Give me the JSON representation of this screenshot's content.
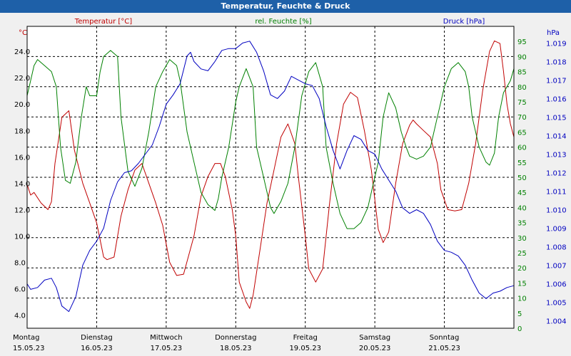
{
  "title": "Temperatur, Feuchte & Druck",
  "colors": {
    "temp": "#c00000",
    "hum": "#008000",
    "press": "#0000c0",
    "grid": "#000000",
    "titlebar": "#1e60a8"
  },
  "chart_data": {
    "type": "line",
    "title": "Temperatur, Feuchte & Druck",
    "x_range": [
      0,
      7
    ],
    "x_days": [
      {
        "day": "Montag",
        "date": "15.05.23"
      },
      {
        "day": "Dienstag",
        "date": "16.05.23"
      },
      {
        "day": "Mittwoch",
        "date": "17.05.23"
      },
      {
        "day": "Donnerstag",
        "date": "18.05.23"
      },
      {
        "day": "Freitag",
        "date": "19.05.23"
      },
      {
        "day": "Samstag",
        "date": "20.05.23"
      },
      {
        "day": "Sonntag",
        "date": "21.05.23"
      }
    ],
    "axes": {
      "temp": {
        "label": "Temperatur [°C]",
        "unit": "°C",
        "range": [
          3.0,
          25.9
        ],
        "ticks": [
          "4.0",
          "6.0",
          "8.0",
          "10.0",
          "12.0",
          "14.0",
          "16.0",
          "18.0",
          "20.0",
          "22.0",
          "24.0"
        ]
      },
      "hum": {
        "label": "rel. Feuchte [%]",
        "unit": "%",
        "range": [
          0,
          100
        ],
        "ticks": [
          "0",
          "5",
          "10",
          "15",
          "20",
          "25",
          "30",
          "35",
          "40",
          "45",
          "50",
          "55",
          "60",
          "65",
          "70",
          "75",
          "80",
          "85",
          "90",
          "95"
        ]
      },
      "press": {
        "label": "Druck [hPa]",
        "unit": "hPa",
        "range": [
          1.0036,
          1.0199
        ],
        "ticks": [
          "1.004",
          "1.005",
          "1.006",
          "1.007",
          "1.008",
          "1.009",
          "1.010",
          "1.011",
          "1.012",
          "1.013",
          "1.014",
          "1.015",
          "1.016",
          "1.017",
          "1.018",
          "1.019"
        ]
      }
    },
    "series": [
      {
        "name": "Temperatur [°C]",
        "axis": "temp",
        "points": [
          [
            0,
            13.9
          ],
          [
            0.05,
            13.1
          ],
          [
            0.1,
            13.3
          ],
          [
            0.2,
            12.5
          ],
          [
            0.3,
            12.0
          ],
          [
            0.35,
            12.6
          ],
          [
            0.4,
            15.5
          ],
          [
            0.5,
            19.0
          ],
          [
            0.6,
            19.5
          ],
          [
            0.68,
            16.5
          ],
          [
            0.8,
            14.0
          ],
          [
            0.9,
            12.5
          ],
          [
            1.0,
            11.0
          ],
          [
            1.1,
            8.4
          ],
          [
            1.15,
            8.2
          ],
          [
            1.25,
            8.4
          ],
          [
            1.35,
            11.5
          ],
          [
            1.45,
            13.5
          ],
          [
            1.55,
            15.0
          ],
          [
            1.65,
            15.5
          ],
          [
            1.75,
            14.0
          ],
          [
            1.85,
            12.5
          ],
          [
            1.95,
            10.8
          ],
          [
            2.05,
            8.0
          ],
          [
            2.15,
            7.0
          ],
          [
            2.25,
            7.1
          ],
          [
            2.4,
            10.0
          ],
          [
            2.5,
            13.0
          ],
          [
            2.6,
            14.5
          ],
          [
            2.7,
            15.5
          ],
          [
            2.78,
            15.5
          ],
          [
            2.85,
            14.5
          ],
          [
            2.95,
            12.0
          ],
          [
            3.0,
            10.0
          ],
          [
            3.05,
            6.5
          ],
          [
            3.15,
            5.0
          ],
          [
            3.2,
            4.5
          ],
          [
            3.25,
            5.5
          ],
          [
            3.35,
            9.0
          ],
          [
            3.45,
            12.5
          ],
          [
            3.55,
            15.0
          ],
          [
            3.65,
            17.5
          ],
          [
            3.75,
            18.5
          ],
          [
            3.85,
            17.0
          ],
          [
            3.9,
            14.5
          ],
          [
            4.0,
            10.0
          ],
          [
            4.05,
            7.5
          ],
          [
            4.15,
            6.5
          ],
          [
            4.25,
            7.5
          ],
          [
            4.35,
            12.5
          ],
          [
            4.45,
            17.0
          ],
          [
            4.55,
            20.0
          ],
          [
            4.65,
            20.9
          ],
          [
            4.75,
            20.5
          ],
          [
            4.85,
            18.0
          ],
          [
            4.95,
            15.0
          ],
          [
            5.05,
            10.5
          ],
          [
            5.12,
            9.5
          ],
          [
            5.2,
            10.3
          ],
          [
            5.3,
            14.0
          ],
          [
            5.4,
            17.0
          ],
          [
            5.5,
            18.4
          ],
          [
            5.55,
            18.8
          ],
          [
            5.6,
            18.5
          ],
          [
            5.7,
            18.0
          ],
          [
            5.8,
            17.5
          ],
          [
            5.9,
            15.5
          ],
          [
            5.95,
            13.5
          ],
          [
            6.05,
            12.0
          ],
          [
            6.15,
            11.9
          ],
          [
            6.25,
            12.0
          ],
          [
            6.35,
            14.0
          ],
          [
            6.45,
            17.0
          ],
          [
            6.55,
            21.0
          ],
          [
            6.65,
            24.0
          ],
          [
            6.72,
            24.8
          ],
          [
            6.8,
            24.6
          ],
          [
            6.85,
            22.5
          ],
          [
            6.9,
            20.0
          ],
          [
            6.95,
            18.5
          ],
          [
            7.0,
            17.5
          ]
        ]
      },
      {
        "name": "rel. Feuchte [%]",
        "axis": "hum",
        "points": [
          [
            0,
            77
          ],
          [
            0.05,
            82
          ],
          [
            0.1,
            87
          ],
          [
            0.15,
            89
          ],
          [
            0.25,
            87
          ],
          [
            0.35,
            85
          ],
          [
            0.42,
            80
          ],
          [
            0.48,
            60
          ],
          [
            0.55,
            49
          ],
          [
            0.62,
            48
          ],
          [
            0.7,
            55
          ],
          [
            0.78,
            70
          ],
          [
            0.85,
            80
          ],
          [
            0.9,
            77
          ],
          [
            1.0,
            77
          ],
          [
            1.05,
            85
          ],
          [
            1.1,
            90
          ],
          [
            1.2,
            92
          ],
          [
            1.3,
            90
          ],
          [
            1.35,
            70
          ],
          [
            1.45,
            52
          ],
          [
            1.55,
            47
          ],
          [
            1.65,
            53
          ],
          [
            1.75,
            65
          ],
          [
            1.85,
            80
          ],
          [
            1.95,
            85
          ],
          [
            2.05,
            89
          ],
          [
            2.15,
            87
          ],
          [
            2.2,
            82
          ],
          [
            2.3,
            65
          ],
          [
            2.4,
            55
          ],
          [
            2.5,
            45
          ],
          [
            2.6,
            41
          ],
          [
            2.7,
            39
          ],
          [
            2.75,
            43
          ],
          [
            2.8,
            50
          ],
          [
            2.9,
            60
          ],
          [
            3.0,
            75
          ],
          [
            3.05,
            80
          ],
          [
            3.15,
            86
          ],
          [
            3.25,
            80
          ],
          [
            3.3,
            60
          ],
          [
            3.4,
            50
          ],
          [
            3.5,
            40
          ],
          [
            3.55,
            38
          ],
          [
            3.65,
            42
          ],
          [
            3.75,
            48
          ],
          [
            3.85,
            60
          ],
          [
            3.95,
            77
          ],
          [
            4.05,
            85
          ],
          [
            4.15,
            88
          ],
          [
            4.25,
            80
          ],
          [
            4.3,
            60
          ],
          [
            4.4,
            48
          ],
          [
            4.5,
            38
          ],
          [
            4.6,
            33
          ],
          [
            4.7,
            33
          ],
          [
            4.8,
            35
          ],
          [
            4.9,
            40
          ],
          [
            5.0,
            50
          ],
          [
            5.05,
            55
          ],
          [
            5.12,
            70
          ],
          [
            5.2,
            78
          ],
          [
            5.3,
            73
          ],
          [
            5.38,
            65
          ],
          [
            5.45,
            60
          ],
          [
            5.5,
            57
          ],
          [
            5.6,
            56
          ],
          [
            5.7,
            57
          ],
          [
            5.8,
            60
          ],
          [
            5.9,
            70
          ],
          [
            6.0,
            80
          ],
          [
            6.1,
            86
          ],
          [
            6.2,
            88
          ],
          [
            6.3,
            85
          ],
          [
            6.35,
            80
          ],
          [
            6.4,
            70
          ],
          [
            6.5,
            60
          ],
          [
            6.6,
            55
          ],
          [
            6.65,
            54
          ],
          [
            6.72,
            58
          ],
          [
            6.78,
            70
          ],
          [
            6.85,
            78
          ],
          [
            6.9,
            80
          ],
          [
            6.95,
            82
          ],
          [
            7.0,
            86
          ]
        ]
      },
      {
        "name": "Druck [hPa]",
        "axis": "press",
        "points": [
          [
            0,
            1.006
          ],
          [
            0.05,
            1.0057
          ],
          [
            0.15,
            1.0058
          ],
          [
            0.25,
            1.0062
          ],
          [
            0.35,
            1.0063
          ],
          [
            0.42,
            1.0058
          ],
          [
            0.5,
            1.0048
          ],
          [
            0.6,
            1.0045
          ],
          [
            0.7,
            1.0053
          ],
          [
            0.8,
            1.007
          ],
          [
            0.9,
            1.0078
          ],
          [
            1.0,
            1.0083
          ],
          [
            1.1,
            1.009
          ],
          [
            1.2,
            1.0105
          ],
          [
            1.3,
            1.0115
          ],
          [
            1.4,
            1.012
          ],
          [
            1.5,
            1.0121
          ],
          [
            1.6,
            1.0125
          ],
          [
            1.7,
            1.013
          ],
          [
            1.8,
            1.0135
          ],
          [
            1.9,
            1.0145
          ],
          [
            2.0,
            1.0157
          ],
          [
            2.1,
            1.0162
          ],
          [
            2.2,
            1.0168
          ],
          [
            2.3,
            1.0183
          ],
          [
            2.35,
            1.0185
          ],
          [
            2.4,
            1.018
          ],
          [
            2.5,
            1.0176
          ],
          [
            2.6,
            1.0175
          ],
          [
            2.7,
            1.018
          ],
          [
            2.8,
            1.0186
          ],
          [
            2.9,
            1.0187
          ],
          [
            3.0,
            1.0187
          ],
          [
            3.1,
            1.019
          ],
          [
            3.2,
            1.0191
          ],
          [
            3.3,
            1.0185
          ],
          [
            3.4,
            1.0175
          ],
          [
            3.5,
            1.0162
          ],
          [
            3.6,
            1.016
          ],
          [
            3.7,
            1.0164
          ],
          [
            3.8,
            1.0172
          ],
          [
            3.9,
            1.017
          ],
          [
            4.0,
            1.0168
          ],
          [
            4.1,
            1.0167
          ],
          [
            4.2,
            1.016
          ],
          [
            4.3,
            1.0145
          ],
          [
            4.4,
            1.0132
          ],
          [
            4.5,
            1.0122
          ],
          [
            4.6,
            1.0132
          ],
          [
            4.7,
            1.014
          ],
          [
            4.8,
            1.0138
          ],
          [
            4.9,
            1.0132
          ],
          [
            5.0,
            1.013
          ],
          [
            5.1,
            1.0122
          ],
          [
            5.2,
            1.0116
          ],
          [
            5.3,
            1.011
          ],
          [
            5.4,
            1.0101
          ],
          [
            5.5,
            1.0098
          ],
          [
            5.6,
            1.01
          ],
          [
            5.7,
            1.0098
          ],
          [
            5.8,
            1.0092
          ],
          [
            5.9,
            1.0083
          ],
          [
            6.0,
            1.0078
          ],
          [
            6.1,
            1.0077
          ],
          [
            6.2,
            1.0075
          ],
          [
            6.3,
            1.007
          ],
          [
            6.4,
            1.0062
          ],
          [
            6.5,
            1.0055
          ],
          [
            6.6,
            1.0052
          ],
          [
            6.7,
            1.0055
          ],
          [
            6.8,
            1.0056
          ],
          [
            6.9,
            1.0058
          ],
          [
            7.0,
            1.0059
          ]
        ]
      }
    ]
  }
}
